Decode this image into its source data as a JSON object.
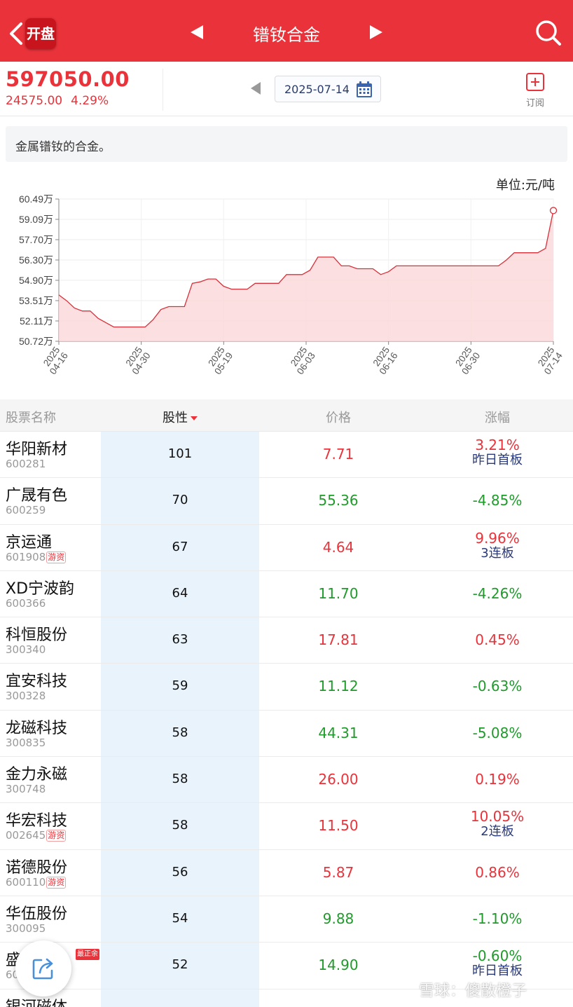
{
  "header": {
    "back_icon": "chevron-left-icon",
    "badge_label": "开盘",
    "title": "镨钕合金",
    "search_icon": "search-icon"
  },
  "quote": {
    "price": "597050.00",
    "change": "24575.00",
    "change_pct": "4.29%",
    "date": "2025-07-14",
    "subscribe_label": "订阅"
  },
  "description": "金属镨钕的合金。",
  "chart_data": {
    "type": "area",
    "unit_label": "单位:元/吨",
    "y_ticks": [
      "60.49万",
      "59.09万",
      "57.70万",
      "56.30万",
      "54.90万",
      "53.51万",
      "52.11万",
      "50.72万"
    ],
    "ylim": [
      50.72,
      60.49
    ],
    "x_ticks": [
      {
        "year": "2025",
        "date": "04-16"
      },
      {
        "year": "2025",
        "date": "04-30"
      },
      {
        "year": "2025",
        "date": "05-19"
      },
      {
        "year": "2025",
        "date": "06-03"
      },
      {
        "year": "2025",
        "date": "06-16"
      },
      {
        "year": "2025",
        "date": "06-30"
      },
      {
        "year": "2025",
        "date": "07-14"
      }
    ],
    "values": [
      53.9,
      53.5,
      53.0,
      52.8,
      52.8,
      52.3,
      52.0,
      51.7,
      51.7,
      51.7,
      51.7,
      51.7,
      52.2,
      52.9,
      53.1,
      53.1,
      53.1,
      54.7,
      54.8,
      55.0,
      55.0,
      54.5,
      54.3,
      54.3,
      54.3,
      54.7,
      54.7,
      54.7,
      54.7,
      55.3,
      55.3,
      55.3,
      55.6,
      56.5,
      56.5,
      56.5,
      55.9,
      55.9,
      55.7,
      55.7,
      55.7,
      55.3,
      55.5,
      55.9,
      55.9,
      55.9,
      55.9,
      55.9,
      55.9,
      55.9,
      55.9,
      55.9,
      55.9,
      55.9,
      55.9,
      55.9,
      55.9,
      56.3,
      56.8,
      56.8,
      56.8,
      56.8,
      57.1,
      59.7
    ],
    "line_color": "#d8303a",
    "fill_color": "#fbd9da"
  },
  "table": {
    "headers": {
      "name": "股票名称",
      "prop": "股性",
      "price": "价格",
      "chg": "涨幅"
    },
    "rows": [
      {
        "name": "华阳新材",
        "code": "600281",
        "tag": "",
        "prop": "101",
        "price": "7.71",
        "chg": "3.21%",
        "sub": "昨日首板",
        "dir": "up",
        "flag": ""
      },
      {
        "name": "广晟有色",
        "code": "600259",
        "tag": "",
        "prop": "70",
        "price": "55.36",
        "chg": "-4.85%",
        "sub": "",
        "dir": "down",
        "flag": ""
      },
      {
        "name": "京运通",
        "code": "601908",
        "tag": "游资",
        "prop": "67",
        "price": "4.64",
        "chg": "9.96%",
        "sub": "3连板",
        "dir": "up",
        "flag": ""
      },
      {
        "name": "XD宁波韵",
        "code": "600366",
        "tag": "",
        "prop": "64",
        "price": "11.70",
        "chg": "-4.26%",
        "sub": "",
        "dir": "down",
        "flag": ""
      },
      {
        "name": "科恒股份",
        "code": "300340",
        "tag": "",
        "prop": "63",
        "price": "17.81",
        "chg": "0.45%",
        "sub": "",
        "dir": "up",
        "flag": ""
      },
      {
        "name": "宜安科技",
        "code": "300328",
        "tag": "",
        "prop": "59",
        "price": "11.12",
        "chg": "-0.63%",
        "sub": "",
        "dir": "down",
        "flag": ""
      },
      {
        "name": "龙磁科技",
        "code": "300835",
        "tag": "",
        "prop": "58",
        "price": "44.31",
        "chg": "-5.08%",
        "sub": "",
        "dir": "down",
        "flag": ""
      },
      {
        "name": "金力永磁",
        "code": "300748",
        "tag": "",
        "prop": "58",
        "price": "26.00",
        "chg": "0.19%",
        "sub": "",
        "dir": "up",
        "flag": ""
      },
      {
        "name": "华宏科技",
        "code": "002645",
        "tag": "游资",
        "prop": "58",
        "price": "11.50",
        "chg": "10.05%",
        "sub": "2连板",
        "dir": "up",
        "flag": ""
      },
      {
        "name": "诺德股份",
        "code": "600110",
        "tag": "游资",
        "prop": "56",
        "price": "5.87",
        "chg": "0.86%",
        "sub": "",
        "dir": "up",
        "flag": ""
      },
      {
        "name": "华伍股份",
        "code": "300095",
        "tag": "",
        "prop": "54",
        "price": "9.88",
        "chg": "-1.10%",
        "sub": "",
        "dir": "down",
        "flag": ""
      },
      {
        "name": "盛",
        "code": "60",
        "tag": "",
        "prop": "52",
        "price": "14.90",
        "chg": "-0.60%",
        "sub": "昨日首板",
        "dir": "down",
        "flag": "最正余"
      },
      {
        "name": "银河磁体",
        "code": "",
        "tag": "",
        "prop": "",
        "price": "",
        "chg": "",
        "sub": "",
        "dir": "down",
        "flag": ""
      }
    ]
  },
  "share_icon": "share-icon",
  "watermark": "雪球：傻散橙子"
}
